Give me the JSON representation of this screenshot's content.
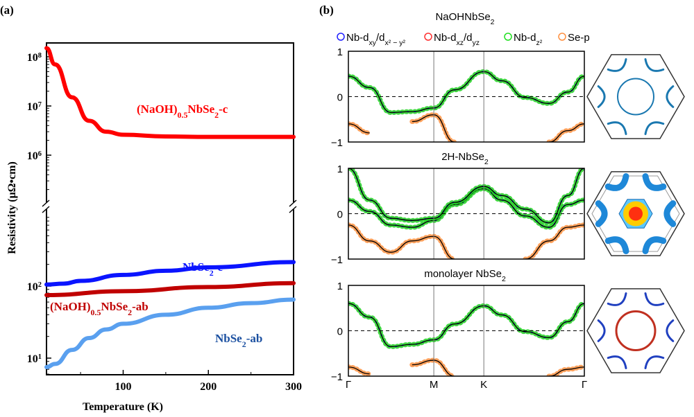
{
  "chart_data": [
    {
      "type": "line",
      "panel_label": "(a)",
      "xlabel": "Temperature (K)",
      "ylabel": "Resistivity (μΩ•cm)",
      "yscale": "log, broken axis",
      "xlim": [
        10,
        300
      ],
      "xticks": [
        "100",
        "200",
        "300"
      ],
      "yticks_upper": [
        {
          "label": "10",
          "exp": "8",
          "v": 100000000.0
        },
        {
          "label": "10",
          "exp": "7",
          "v": 10000000.0
        },
        {
          "label": "10",
          "exp": "6",
          "v": 1000000.0
        }
      ],
      "yticks_lower": [
        {
          "label": "10",
          "exp": "2",
          "v": 100
        },
        {
          "label": "10",
          "exp": "1",
          "v": 10
        }
      ],
      "series": [
        {
          "name": "(NaOH)",
          "sub": "0.5",
          "rest": "NbSe",
          "sub2": "2",
          "suffix": "-c",
          "color": "#ff0000",
          "segment": "upper",
          "x": [
            10,
            20,
            40,
            60,
            80,
            100,
            150,
            200,
            300
          ],
          "y": [
            150000000.0,
            70000000.0,
            15000000.0,
            5000000.0,
            3000000.0,
            2600000.0,
            2400000.0,
            2350000.0,
            2350000.0
          ]
        },
        {
          "name": "NbSe",
          "sub": "2",
          "suffix": "-c",
          "color": "#0a14ff",
          "segment": "lower",
          "x": [
            10,
            30,
            50,
            100,
            150,
            200,
            300
          ],
          "y": [
            105,
            108,
            118,
            143,
            163,
            182,
            215
          ]
        },
        {
          "name": "(NaOH)",
          "sub": "0.5",
          "rest": "NbSe",
          "sub2": "2",
          "suffix": "-ab",
          "color": "#c00000",
          "segment": "lower",
          "x": [
            10,
            100,
            200,
            300
          ],
          "y": [
            75,
            85,
            97,
            110
          ]
        },
        {
          "name": "NbSe",
          "sub": "2",
          "suffix": "-ab",
          "color": "#5aa0ef",
          "label_color": "#1a4fa0",
          "segment": "lower",
          "x": [
            10,
            20,
            40,
            60,
            80,
            100,
            150,
            200,
            250,
            300
          ],
          "y": [
            7.5,
            8.3,
            13,
            19,
            25,
            30,
            40,
            50,
            58,
            65
          ]
        }
      ]
    },
    {
      "type": "line",
      "panel_label": "(b)",
      "kpath": [
        "Γ",
        "M",
        "K",
        "Γ"
      ],
      "kpos": [
        0,
        0.362,
        0.574,
        1
      ],
      "ylim": [
        -1,
        1
      ],
      "yticks": [
        "1",
        "0",
        "−1"
      ],
      "legend": [
        {
          "text": "Nb-d",
          "sub": "xy",
          "mid": "/d",
          "sub2": "x² − y²",
          "color": "#2020ff"
        },
        {
          "text": "Nb-d",
          "sub": "xz",
          "mid": "/d",
          "sub2": "yz",
          "color": "#ff3030"
        },
        {
          "text": "Nb-d",
          "sub": "z²",
          "color": "#20e020"
        },
        {
          "text": "Se-p",
          "color": "#ff9040"
        }
      ],
      "k": [
        0,
        0.09,
        0.18,
        0.27,
        0.362,
        0.45,
        0.574,
        0.65,
        0.75,
        0.85,
        0.93,
        1
      ],
      "panels": [
        {
          "title": "NaOHNbSe",
          "sub": "2",
          "bands": [
            {
              "orbital": "d",
              "E": [
                0.45,
                0.2,
                -0.35,
                -0.33,
                -0.25,
                0.15,
                0.55,
                0.35,
                -0.02,
                -0.15,
                0.1,
                0.45
              ]
            },
            {
              "orbital": "Se-p",
              "E": [
                -0.6,
                -0.8,
                null,
                -0.55,
                -0.4,
                -1.0,
                null,
                null,
                null,
                -1.0,
                -0.75,
                -0.6
              ]
            }
          ]
        },
        {
          "title": "2H-NbSe",
          "sub": "2",
          "bands": [
            {
              "orbital": "d",
              "E": [
                0.3,
                0.05,
                -0.25,
                -0.3,
                -0.15,
                0.2,
                0.55,
                0.3,
                -0.05,
                -0.3,
                0.2,
                0.3
              ]
            },
            {
              "orbital": "d",
              "E": [
                1.0,
                0.3,
                -0.1,
                -0.15,
                -0.1,
                0.25,
                0.6,
                0.4,
                0.1,
                -0.2,
                0.4,
                1.0
              ]
            },
            {
              "orbital": "Se-p",
              "E": [
                -0.25,
                -0.6,
                -0.85,
                -0.6,
                -0.5,
                -1.0,
                null,
                null,
                -1.0,
                -0.6,
                -0.3,
                -0.25
              ]
            }
          ]
        },
        {
          "title": "monolayer NbSe",
          "sub": "2",
          "bands": [
            {
              "orbital": "d",
              "E": [
                0.6,
                0.3,
                -0.35,
                -0.3,
                -0.2,
                0.15,
                0.55,
                0.35,
                -0.02,
                -0.15,
                0.2,
                0.6
              ]
            },
            {
              "orbital": "Se-p",
              "E": [
                -0.8,
                -0.95,
                null,
                -0.75,
                -0.65,
                -1.0,
                null,
                null,
                null,
                -1.0,
                -0.85,
                -0.8
              ]
            }
          ]
        }
      ]
    }
  ]
}
